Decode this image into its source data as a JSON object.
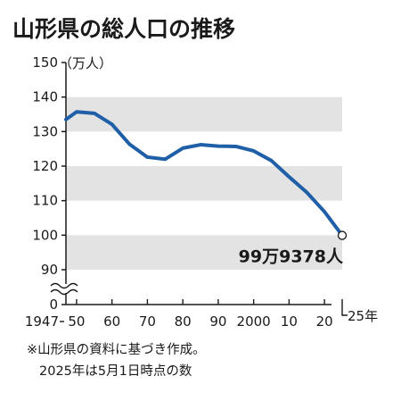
{
  "chart_data": {
    "type": "line",
    "title": "山形県の総人口の推移",
    "ylabel": "（万人）",
    "ylim": [
      90,
      150
    ],
    "yticks": [
      150,
      140,
      130,
      120,
      110,
      100,
      90
    ],
    "ybase_label": "0",
    "axis_break": true,
    "x_tick_labels": [
      {
        "x": 1947,
        "label": "1947"
      },
      {
        "x": 1950,
        "label": "50"
      },
      {
        "x": 1960,
        "label": "60"
      },
      {
        "x": 1970,
        "label": "70"
      },
      {
        "x": 1980,
        "label": "80"
      },
      {
        "x": 1990,
        "label": "90"
      },
      {
        "x": 2000,
        "label": "2000"
      },
      {
        "x": 2010,
        "label": "10"
      },
      {
        "x": 2020,
        "label": "20"
      },
      {
        "x": 2025,
        "label": "25年"
      }
    ],
    "bands": [
      [
        130,
        140
      ],
      [
        110,
        120
      ],
      [
        90,
        100
      ]
    ],
    "band_color": "#e3e3e3",
    "line_color": "#1f5fa8",
    "series": [
      {
        "x": [
          1947,
          1950,
          1955,
          1960,
          1965,
          1970,
          1975,
          1980,
          1985,
          1990,
          1995,
          2000,
          2005,
          2010,
          2015,
          2020,
          2025
        ],
        "values": [
          133.5,
          135.7,
          135.3,
          132.1,
          126.3,
          122.6,
          122.0,
          125.2,
          126.2,
          125.8,
          125.7,
          124.4,
          121.6,
          116.9,
          112.4,
          106.8,
          99.9378
        ]
      }
    ],
    "annotation": {
      "x": 2025,
      "y": 99.9378,
      "text": "99万9378人"
    },
    "notes": [
      "※山形県の資料に基づき作成。",
      "2025年は5月1日時点の数"
    ]
  }
}
